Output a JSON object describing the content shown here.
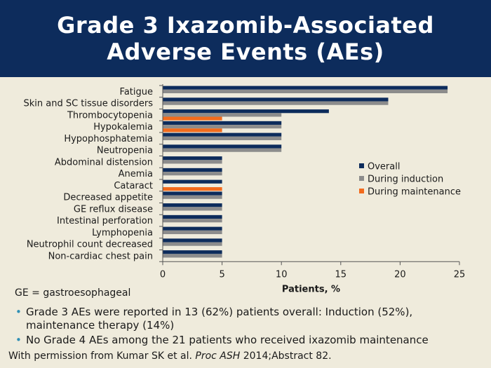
{
  "header": {
    "title_line1": "Grade 3 Ixazomib-Associated",
    "title_line2": "Adverse Events (AEs)"
  },
  "colors": {
    "header_bg": "#0d2c5c",
    "page_bg": "#efebdc",
    "overall": "#0d2c5c",
    "induction": "#8c8c8c",
    "maintenance": "#f26b1d",
    "bullet": "#2f8fb5"
  },
  "chart_data": {
    "type": "bar",
    "orientation": "horizontal",
    "categories": [
      "Fatigue",
      "Skin and SC tissue disorders",
      "Thrombocytopenia",
      "Hypokalemia",
      "Hypophosphatemia",
      "Neutropenia",
      "Abdominal distension",
      "Anemia",
      "Cataract",
      "Decreased appetite",
      "GE reflux disease",
      "Intestinal perforation",
      "Lymphopenia",
      "Neutrophil count decreased",
      "Non-cardiac chest pain"
    ],
    "series": [
      {
        "name": "Overall",
        "color": "#0d2c5c",
        "values": [
          24,
          19,
          14,
          10,
          10,
          10,
          5,
          5,
          5,
          5,
          5,
          5,
          5,
          5,
          5
        ]
      },
      {
        "name": "During induction",
        "color": "#8c8c8c",
        "values": [
          24,
          19,
          10,
          10,
          10,
          10,
          5,
          5,
          0,
          5,
          5,
          5,
          5,
          5,
          5
        ]
      },
      {
        "name": "During maintenance",
        "color": "#f26b1d",
        "values": [
          0,
          0,
          5,
          5,
          0,
          0,
          0,
          0,
          5,
          0,
          0,
          0,
          0,
          0,
          0
        ]
      }
    ],
    "xlabel": "Patients, %",
    "ylabel": "",
    "xlim": [
      0,
      25
    ],
    "xticks": [
      "0",
      "5",
      "10",
      "15",
      "20",
      "25"
    ],
    "legend_position": "right",
    "grid": false
  },
  "footnote": "GE = gastroesophageal",
  "bullets": [
    "Grade 3 AEs were reported in 13 (62%) patients overall: Induction (52%), maintenance therapy (14%)",
    "No Grade 4 AEs among the 21 patients who received ixazomib maintenance"
  ],
  "source": {
    "prefix": "With permission from Kumar SK et al. ",
    "journal": "Proc ASH",
    "suffix": " 2014;Abstract 82."
  }
}
